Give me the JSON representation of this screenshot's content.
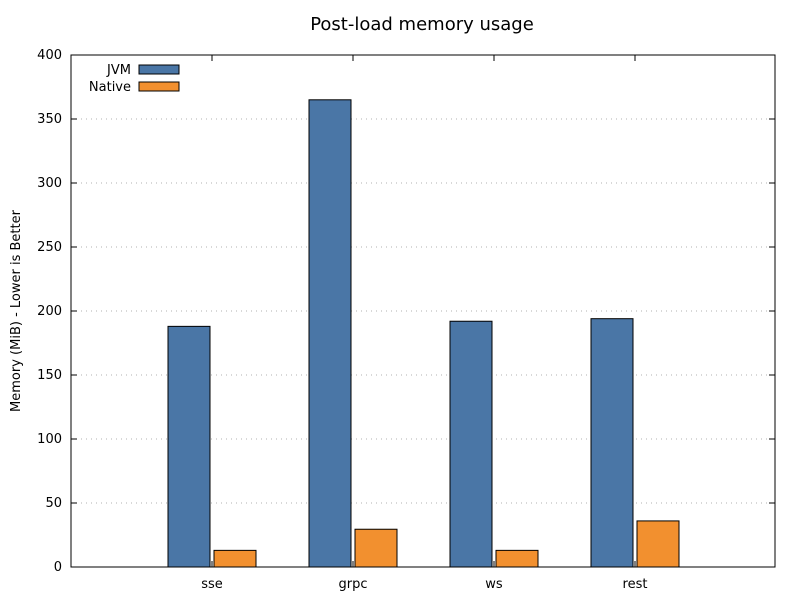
{
  "chart_data": {
    "type": "bar",
    "title": "Post-load memory usage",
    "xlabel": "",
    "ylabel": "Memory (MiB) - Lower is Better",
    "categories": [
      "sse",
      "grpc",
      "ws",
      "rest"
    ],
    "series": [
      {
        "name": "JVM",
        "values": [
          188,
          365,
          192,
          194
        ],
        "color": "#4a76a6"
      },
      {
        "name": "Native",
        "values": [
          13,
          29.5,
          13,
          36
        ],
        "color": "#f2902f"
      }
    ],
    "ylim": [
      0,
      400
    ],
    "yticks": [
      0,
      50,
      100,
      150,
      200,
      250,
      300,
      350,
      400
    ],
    "grid": "horizontal dotted",
    "legend_position": "top-left"
  }
}
